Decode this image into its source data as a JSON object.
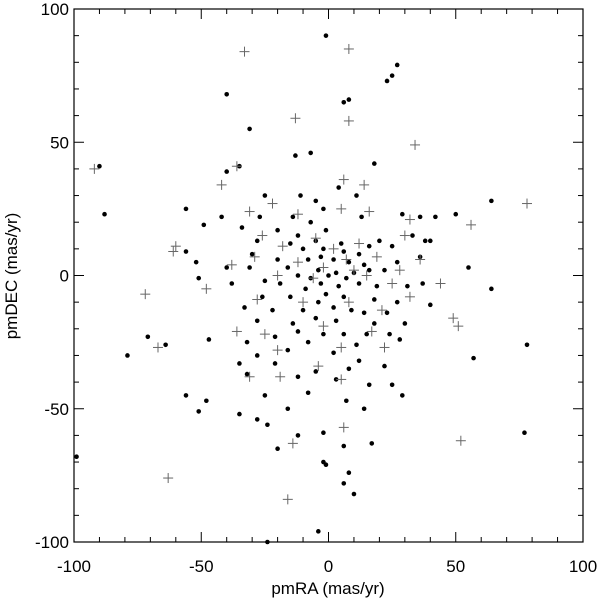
{
  "chart_data": {
    "type": "scatter",
    "title": "",
    "xlabel": "pmRA (mas/yr)",
    "ylabel": "pmDEC (mas/yr)",
    "xlim": [
      -100,
      100
    ],
    "ylim": [
      -100,
      100
    ],
    "xticks": [
      -100,
      -50,
      0,
      50,
      100
    ],
    "yticks": [
      -100,
      -50,
      0,
      50,
      100
    ],
    "xtick_labels": [
      "-100",
      "-50",
      "0",
      "50",
      "100"
    ],
    "ytick_labels": [
      "-100",
      "-50",
      "0",
      "50",
      "100"
    ],
    "grid": false,
    "series": [
      {
        "marker": "dot",
        "color": "#000000",
        "points": [
          [
            -1,
            90
          ],
          [
            27,
            79
          ],
          [
            25,
            75
          ],
          [
            23,
            73
          ],
          [
            -40,
            68
          ],
          [
            8,
            66
          ],
          [
            6,
            65
          ],
          [
            -35,
            41
          ],
          [
            -90,
            41
          ],
          [
            -31,
            55
          ],
          [
            -7,
            46
          ],
          [
            -13,
            45
          ],
          [
            18,
            42
          ],
          [
            -40,
            39
          ],
          [
            4,
            33
          ],
          [
            -11,
            30
          ],
          [
            -25,
            30
          ],
          [
            -5,
            28
          ],
          [
            -2,
            25
          ],
          [
            11,
            30
          ],
          [
            -88,
            23
          ],
          [
            -56,
            25
          ],
          [
            -42,
            22
          ],
          [
            -27,
            22
          ],
          [
            -14,
            22
          ],
          [
            -7,
            20
          ],
          [
            13,
            22
          ],
          [
            29,
            23
          ],
          [
            36,
            22
          ],
          [
            42,
            22
          ],
          [
            50,
            23
          ],
          [
            64,
            28
          ],
          [
            -49,
            19
          ],
          [
            -34,
            18
          ],
          [
            -20,
            17
          ],
          [
            -1,
            17
          ],
          [
            -12,
            15
          ],
          [
            33,
            15
          ],
          [
            -28,
            13
          ],
          [
            -15,
            12
          ],
          [
            -5,
            13
          ],
          [
            5,
            12
          ],
          [
            16,
            11
          ],
          [
            20,
            13
          ],
          [
            38,
            13
          ],
          [
            25,
            11
          ],
          [
            40,
            13
          ],
          [
            -10,
            10
          ],
          [
            -2,
            10
          ],
          [
            6,
            9
          ],
          [
            12,
            8
          ],
          [
            -30,
            8
          ],
          [
            -56,
            9
          ],
          [
            -52,
            5
          ],
          [
            -20,
            6
          ],
          [
            -8,
            6
          ],
          [
            -3,
            7
          ],
          [
            2,
            6
          ],
          [
            8,
            5
          ],
          [
            14,
            4
          ],
          [
            27,
            5
          ],
          [
            36,
            7
          ],
          [
            55,
            3
          ],
          [
            -40,
            3
          ],
          [
            -31,
            3
          ],
          [
            -16,
            3
          ],
          [
            -4,
            2
          ],
          [
            3,
            1
          ],
          [
            10,
            1
          ],
          [
            16,
            2
          ],
          [
            22,
            2
          ],
          [
            -12,
            0
          ],
          [
            -7,
            -1
          ],
          [
            0,
            0
          ],
          [
            7,
            -1
          ],
          [
            -51,
            -1
          ],
          [
            -38,
            -3
          ],
          [
            -25,
            -2
          ],
          [
            -19,
            -3
          ],
          [
            -3,
            -3
          ],
          [
            4,
            -4
          ],
          [
            12,
            -3
          ],
          [
            19,
            -4
          ],
          [
            37,
            -3
          ],
          [
            31,
            -4
          ],
          [
            64,
            -5
          ],
          [
            -9,
            -5
          ],
          [
            -1,
            -7
          ],
          [
            6,
            -8
          ],
          [
            -15,
            -8
          ],
          [
            -26,
            -8
          ],
          [
            18,
            -9
          ],
          [
            27,
            -10
          ],
          [
            40,
            -11
          ],
          [
            -4,
            -10
          ],
          [
            2,
            -12
          ],
          [
            -33,
            -12
          ],
          [
            -22,
            -13
          ],
          [
            -10,
            -13
          ],
          [
            9,
            -13
          ],
          [
            14,
            -14
          ],
          [
            23,
            -14
          ],
          [
            -5,
            -16
          ],
          [
            3,
            -17
          ],
          [
            -14,
            -18
          ],
          [
            -28,
            -17
          ],
          [
            18,
            -18
          ],
          [
            30,
            -18
          ],
          [
            -12,
            -21
          ],
          [
            -2,
            -22
          ],
          [
            6,
            -22
          ],
          [
            15,
            -22
          ],
          [
            -21,
            -23
          ],
          [
            24,
            -22
          ],
          [
            -71,
            -23
          ],
          [
            -47,
            -24
          ],
          [
            -32,
            -25
          ],
          [
            -8,
            -25
          ],
          [
            11,
            -26
          ],
          [
            28,
            -24
          ],
          [
            -64,
            -26
          ],
          [
            -79,
            -30
          ],
          [
            -16,
            -28
          ],
          [
            2,
            -29
          ],
          [
            -28,
            -30
          ],
          [
            12,
            -32
          ],
          [
            -35,
            -33
          ],
          [
            -21,
            -33
          ],
          [
            -5,
            -36
          ],
          [
            8,
            -35
          ],
          [
            22,
            -34
          ],
          [
            57,
            -31
          ],
          [
            78,
            -26
          ],
          [
            -32,
            -37
          ],
          [
            -12,
            -38
          ],
          [
            3,
            -39
          ],
          [
            16,
            -41
          ],
          [
            25,
            -41
          ],
          [
            29,
            -45
          ],
          [
            -48,
            -47
          ],
          [
            -56,
            -45
          ],
          [
            -25,
            -45
          ],
          [
            -8,
            -44
          ],
          [
            7,
            -47
          ],
          [
            -51,
            -51
          ],
          [
            -16,
            -50
          ],
          [
            14,
            -50
          ],
          [
            -35,
            -52
          ],
          [
            -28,
            -54
          ],
          [
            -24,
            -56
          ],
          [
            -2,
            -59
          ],
          [
            -12,
            -60
          ],
          [
            6,
            -64
          ],
          [
            17,
            -63
          ],
          [
            -20,
            -65
          ],
          [
            -99,
            -68
          ],
          [
            -2,
            -70
          ],
          [
            -1,
            -71
          ],
          [
            8,
            -74
          ],
          [
            6,
            -78
          ],
          [
            10,
            -82
          ],
          [
            -4,
            -96
          ],
          [
            -24,
            -100
          ],
          [
            77,
            -59
          ]
        ]
      },
      {
        "marker": "plus",
        "color": "#666666",
        "points": [
          [
            -33,
            84
          ],
          [
            8,
            85
          ],
          [
            -13,
            59
          ],
          [
            8,
            58
          ],
          [
            34,
            49
          ],
          [
            -92,
            40
          ],
          [
            -36,
            41
          ],
          [
            6,
            36
          ],
          [
            -42,
            34
          ],
          [
            14,
            34
          ],
          [
            -22,
            27
          ],
          [
            78,
            27
          ],
          [
            -31,
            24
          ],
          [
            -12,
            23
          ],
          [
            5,
            25
          ],
          [
            16,
            24
          ],
          [
            32,
            21
          ],
          [
            -60,
            11
          ],
          [
            -61,
            9
          ],
          [
            56,
            19
          ],
          [
            30,
            15
          ],
          [
            -26,
            15
          ],
          [
            -5,
            14
          ],
          [
            12,
            12
          ],
          [
            -18,
            11
          ],
          [
            2,
            10
          ],
          [
            -29,
            7
          ],
          [
            -12,
            5
          ],
          [
            7,
            6
          ],
          [
            19,
            7
          ],
          [
            36,
            6
          ],
          [
            -38,
            4
          ],
          [
            -2,
            3
          ],
          [
            10,
            2
          ],
          [
            28,
            2
          ],
          [
            -20,
            0
          ],
          [
            15,
            0
          ],
          [
            -6,
            -1
          ],
          [
            25,
            -3
          ],
          [
            44,
            -3
          ],
          [
            -72,
            -7
          ],
          [
            -48,
            -5
          ],
          [
            32,
            -8
          ],
          [
            -28,
            -9
          ],
          [
            -10,
            -10
          ],
          [
            8,
            -10
          ],
          [
            21,
            -13
          ],
          [
            49,
            -16
          ],
          [
            -36,
            -21
          ],
          [
            -25,
            -22
          ],
          [
            -2,
            -19
          ],
          [
            17,
            -21
          ],
          [
            51,
            -19
          ],
          [
            -67,
            -27
          ],
          [
            -20,
            -28
          ],
          [
            5,
            -27
          ],
          [
            22,
            -27
          ],
          [
            -4,
            -34
          ],
          [
            -31,
            -38
          ],
          [
            -19,
            -38
          ],
          [
            5,
            -39
          ],
          [
            -14,
            -63
          ],
          [
            6,
            -57
          ],
          [
            -63,
            -76
          ],
          [
            -16,
            -84
          ],
          [
            52,
            -62
          ]
        ]
      }
    ]
  }
}
